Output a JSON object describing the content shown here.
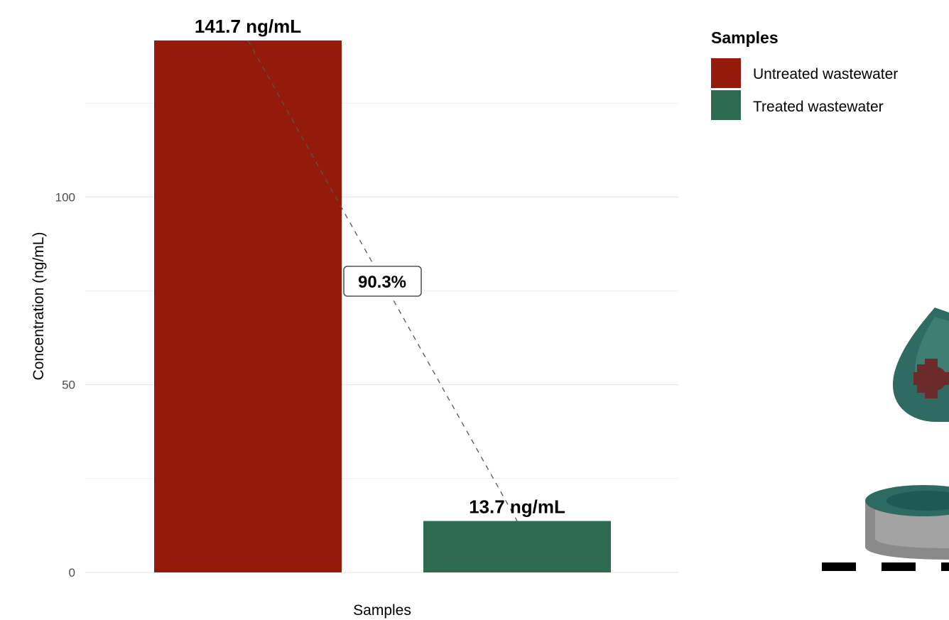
{
  "chart_data": {
    "type": "bar",
    "categories": [
      "Untreated wastewater",
      "Treated wastewater"
    ],
    "values": [
      141.7,
      13.7
    ],
    "value_labels": [
      "141.7 ng/mL",
      "13.7 ng/mL"
    ],
    "colors": [
      "#941b0c",
      "#2f6b50"
    ],
    "ylabel": "Concentration (ng/mL)",
    "xlabel": "Samples",
    "ylim": [
      0,
      141.7
    ],
    "yticks": [
      0,
      50,
      100
    ],
    "ytick_labels": [
      "0",
      "50",
      "100"
    ],
    "grid": true,
    "reduction_label": "90.3%",
    "legend": {
      "title": "Samples",
      "placement": "right",
      "entries": [
        "Untreated wastewater",
        "Treated wastewater"
      ]
    }
  }
}
